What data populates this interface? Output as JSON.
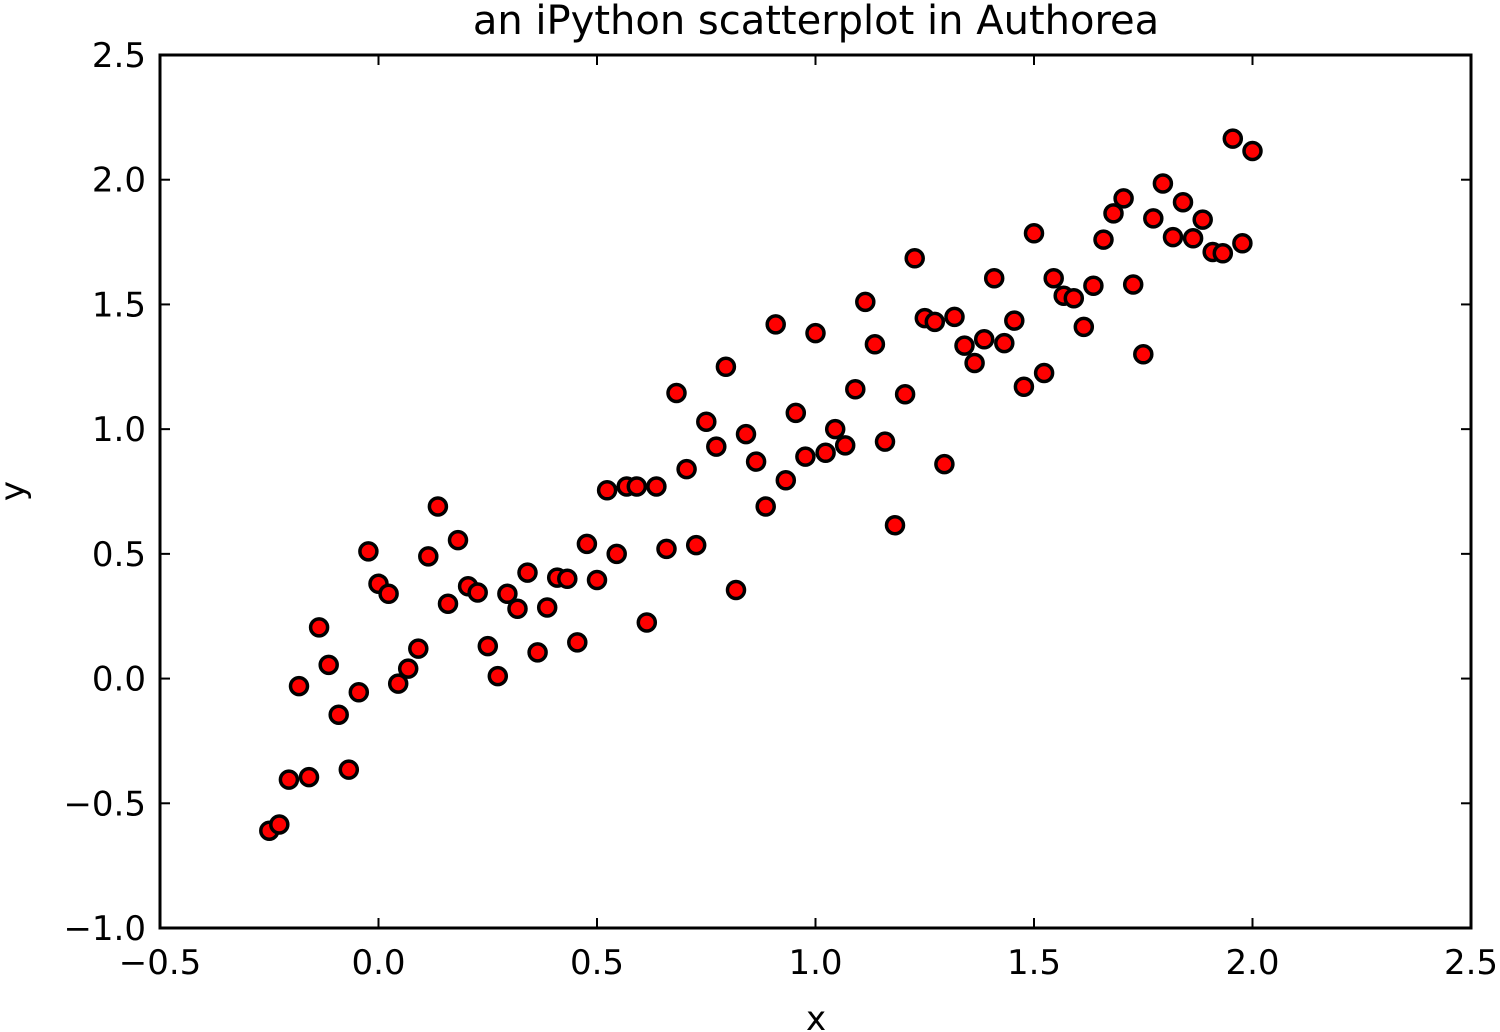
{
  "chart_data": {
    "type": "scatter",
    "title": "an iPython scatterplot in Authorea",
    "xlabel": "x",
    "ylabel": "y",
    "xlim": [
      -0.5,
      2.5
    ],
    "ylim": [
      -1.0,
      2.5
    ],
    "xticks": [
      -0.5,
      0.0,
      0.5,
      1.0,
      1.5,
      2.0,
      2.5
    ],
    "yticks": [
      -1.0,
      -0.5,
      0.0,
      0.5,
      1.0,
      1.5,
      2.0,
      2.5
    ],
    "xtick_labels": [
      "−0.5",
      "0.0",
      "0.5",
      "1.0",
      "1.5",
      "2.0",
      "2.5"
    ],
    "ytick_labels": [
      "−1.0",
      "−0.5",
      "0.0",
      "0.5",
      "1.0",
      "1.5",
      "2.0",
      "2.5"
    ],
    "grid": false,
    "marker_fill": "#ff0000",
    "marker_edge": "#000000",
    "series": [
      {
        "x": [
          -0.25,
          -0.227,
          -0.205,
          -0.182,
          -0.159,
          -0.136,
          -0.114,
          -0.091,
          -0.068,
          -0.045,
          -0.023,
          0.0,
          0.023,
          0.045,
          0.068,
          0.091,
          0.114,
          0.136,
          0.159,
          0.182,
          0.205,
          0.227,
          0.25,
          0.273,
          0.295,
          0.318,
          0.341,
          0.364,
          0.386,
          0.409,
          0.432,
          0.455,
          0.477,
          0.5,
          0.523,
          0.545,
          0.568,
          0.591,
          0.614,
          0.636,
          0.659,
          0.682,
          0.705,
          0.727,
          0.75,
          0.773,
          0.795,
          0.818,
          0.841,
          0.864,
          0.886,
          0.909,
          0.932,
          0.955,
          0.977,
          1.0,
          1.023,
          1.045,
          1.068,
          1.091,
          1.114,
          1.136,
          1.159,
          1.182,
          1.205,
          1.227,
          1.25,
          1.273,
          1.295,
          1.318,
          1.341,
          1.364,
          1.386,
          1.409,
          1.432,
          1.455,
          1.477,
          1.5,
          1.523,
          1.545,
          1.568,
          1.591,
          1.614,
          1.636,
          1.659,
          1.682,
          1.705,
          1.727,
          1.75,
          1.773,
          1.795,
          1.818,
          1.841,
          1.864,
          1.886,
          1.909,
          1.932,
          1.955,
          1.977,
          2.0
        ],
        "y": [
          -0.61,
          -0.585,
          -0.405,
          -0.03,
          -0.395,
          0.205,
          0.055,
          -0.145,
          -0.365,
          -0.055,
          0.51,
          0.38,
          0.34,
          -0.02,
          0.04,
          0.12,
          0.49,
          0.69,
          0.3,
          0.555,
          0.37,
          0.345,
          0.13,
          0.01,
          0.34,
          0.28,
          0.425,
          0.105,
          0.285,
          0.405,
          0.4,
          0.145,
          0.54,
          0.395,
          0.755,
          0.5,
          0.77,
          0.77,
          0.225,
          0.77,
          0.52,
          1.145,
          0.84,
          0.535,
          1.03,
          0.93,
          1.25,
          0.355,
          0.98,
          0.87,
          0.69,
          1.42,
          0.795,
          1.065,
          0.89,
          1.385,
          0.905,
          1.0,
          0.935,
          1.16,
          1.51,
          1.34,
          0.95,
          0.615,
          1.14,
          1.685,
          1.445,
          1.43,
          0.86,
          1.45,
          1.335,
          1.265,
          1.36,
          1.605,
          1.345,
          1.435,
          1.17,
          1.785,
          1.225,
          1.605,
          1.535,
          1.525,
          1.41,
          1.575,
          1.76,
          1.865,
          1.925,
          1.58,
          1.3,
          1.845,
          1.985,
          1.77,
          1.91,
          1.765,
          1.84,
          1.71,
          1.705,
          2.165,
          1.745,
          2.115
        ]
      }
    ]
  }
}
